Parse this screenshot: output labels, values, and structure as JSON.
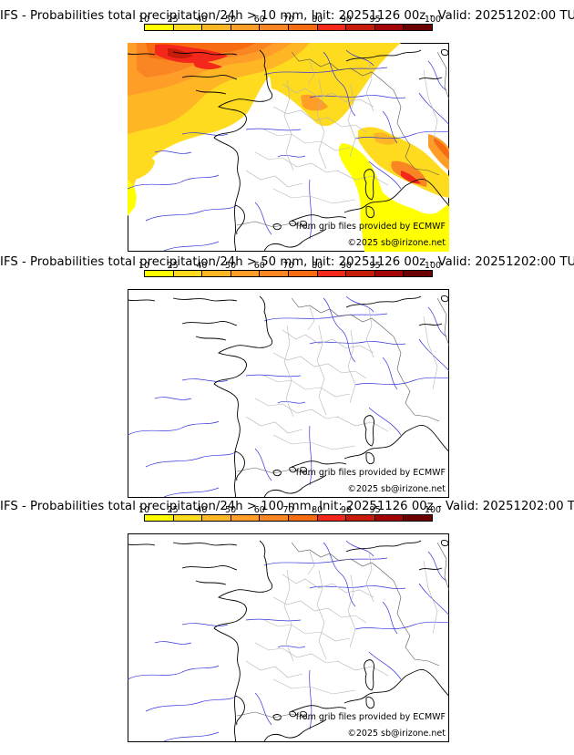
{
  "colors": {
    "scale": [
      "#ffff00",
      "#ffdb1f",
      "#ffb625",
      "#fe9e28",
      "#fa8623",
      "#f76c12",
      "#f3281a",
      "#c71c09",
      "#a30506",
      "#6b0100"
    ],
    "map_background": "#ffffff",
    "coast": "#000000",
    "border": "#b3b3b3",
    "river": "#3333dd"
  },
  "colorbar": {
    "ticks": [
      "10",
      "25",
      "40",
      "50",
      "60",
      "70",
      "80",
      "90",
      "95",
      "100"
    ]
  },
  "panels": [
    {
      "title": "IFS - Probabilities total precipitation/24h > 10 mm, Init: 20251126 00z - Valid: 20251202:00 TU",
      "threshold_mm": 10,
      "source_note": "from grib files provided by ECMWF",
      "copyright": "©2025 sb@irizone.net"
    },
    {
      "title": "IFS - Probabilities total precipitation/24h > 50 mm, Init: 20251126 00z - Valid: 20251202:00 TU",
      "threshold_mm": 50,
      "source_note": "from grib files provided by ECMWF",
      "copyright": "©2025 sb@irizone.net"
    },
    {
      "title": "IFS - Probabilities total precipitation/24h > 100 mm, Init: 20251126 00z - Valid: 20251202:00 TU",
      "threshold_mm": 100,
      "source_note": "from grib files provided by ECMWF",
      "copyright": "©2025 sb@irizone.net"
    }
  ]
}
